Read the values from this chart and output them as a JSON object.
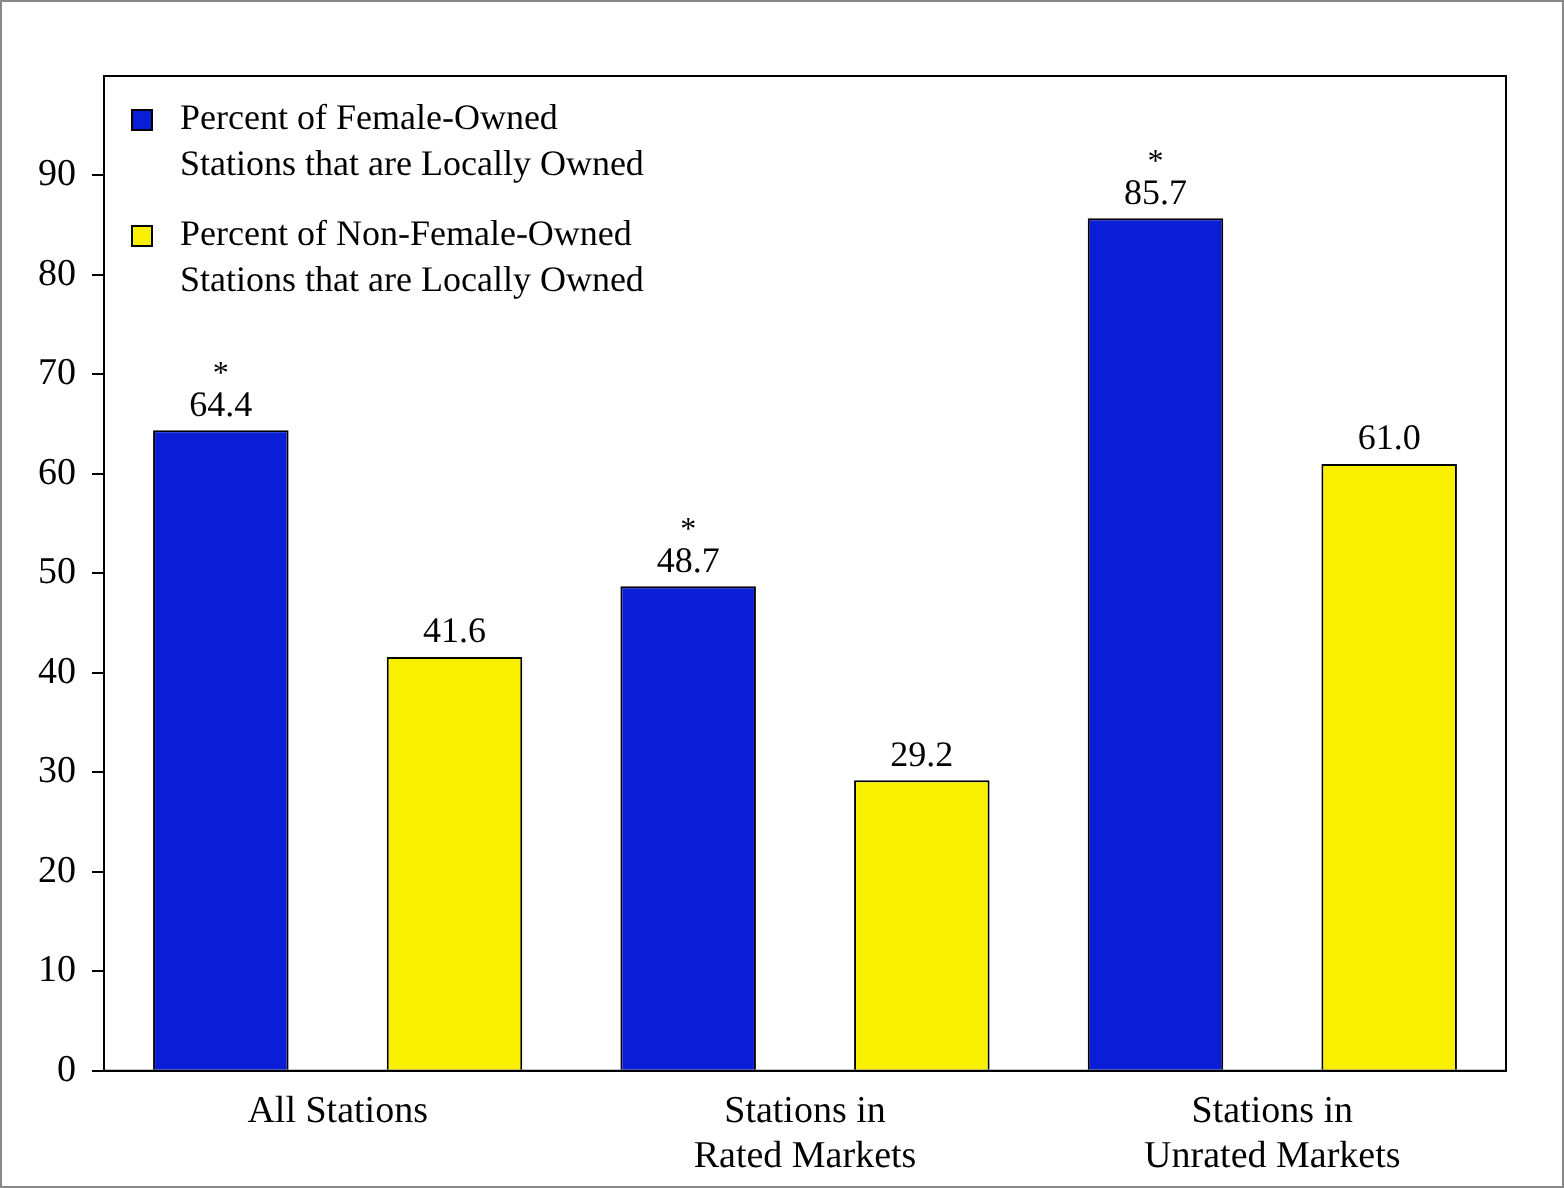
{
  "chart_data": {
    "type": "bar",
    "categories": [
      "All Stations",
      "Stations in\nRated Markets",
      "Stations in\nUnrated Markets"
    ],
    "series": [
      {
        "name": "Percent of Female-Owned\nStations that are Locally Owned",
        "color": "#0a1ed8",
        "values": [
          64.4,
          48.7,
          85.7
        ],
        "value_labels": [
          "64.4",
          "48.7",
          "85.7"
        ]
      },
      {
        "name": "Percent of Non-Female-Owned\nStations that are Locally Owned",
        "color": "#f8f000",
        "values": [
          41.6,
          29.2,
          61.0
        ],
        "value_labels": [
          "41.6",
          "29.2",
          "61.0"
        ]
      }
    ],
    "ylim": [
      0,
      100
    ],
    "yticks": [
      0,
      10,
      20,
      30,
      40,
      50,
      60,
      70,
      80,
      90
    ],
    "grid": false,
    "legend": "top left",
    "annotations": [
      "*",
      "*",
      "*"
    ]
  }
}
